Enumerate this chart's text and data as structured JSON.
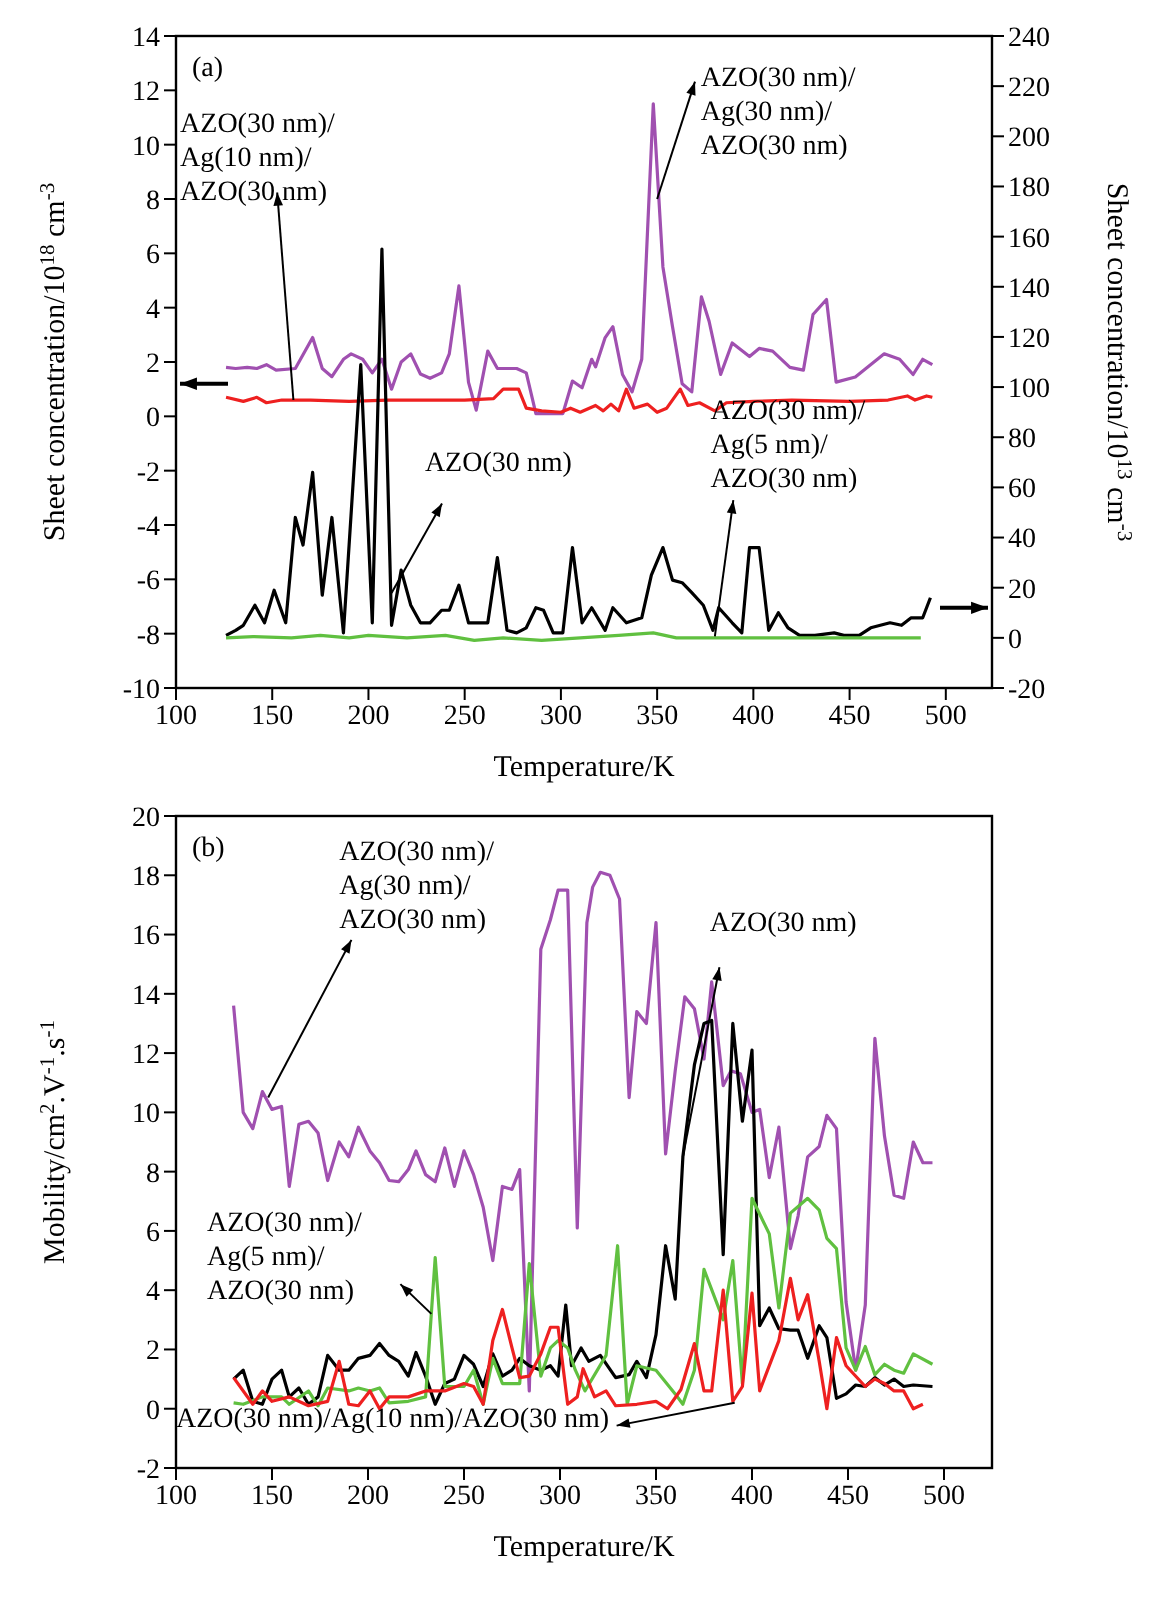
{
  "chart_data": [
    {
      "type": "line",
      "title": "(a)",
      "xlabel": "Temperature/K",
      "ylabel": "Sheet concentration/10$^{18}$ cm$^{-3}$",
      "y2label": "Sheet concentration/10$^{13}$ cm$^{-3}$",
      "marker": "none",
      "xlim": [
        100,
        524
      ],
      "xticks": [
        100,
        150,
        200,
        250,
        300,
        350,
        400,
        450,
        500
      ],
      "ylim": [
        -10,
        14
      ],
      "yticks": [
        -10,
        -8,
        -6,
        -4,
        -2,
        0,
        2,
        4,
        6,
        8,
        10,
        12,
        14
      ],
      "y2lim": [
        -20,
        240
      ],
      "y2ticks": [
        -20,
        0,
        20,
        40,
        60,
        80,
        100,
        120,
        140,
        160,
        180,
        200,
        220,
        240
      ],
      "series": [
        {
          "color": "#a050b0",
          "x": [
            126,
            131,
            137,
            142,
            147,
            152,
            162,
            171,
            176,
            181,
            187,
            191,
            197,
            202,
            207,
            212,
            217,
            222,
            227,
            232,
            238,
            242,
            247,
            252,
            256,
            262,
            267,
            277,
            282,
            287,
            291,
            301,
            306,
            311,
            316,
            318,
            323,
            327,
            332,
            337,
            342,
            348,
            353,
            358,
            363,
            368,
            373,
            377,
            383,
            389,
            398,
            403,
            410,
            419,
            426,
            431,
            438,
            443,
            453,
            468,
            476,
            483,
            488,
            493
          ],
          "values": [
            1.8,
            1.76,
            1.8,
            1.76,
            1.9,
            1.7,
            1.76,
            2.9,
            1.76,
            1.46,
            2.1,
            2.3,
            2.1,
            1.6,
            2.1,
            1.0,
            2.0,
            2.3,
            1.56,
            1.4,
            1.6,
            2.3,
            4.8,
            1.25,
            0.23,
            2.4,
            1.76,
            1.76,
            1.6,
            0.1,
            0.1,
            0.1,
            1.3,
            1.05,
            2.1,
            1.82,
            2.9,
            3.3,
            1.54,
            0.9,
            2.1,
            11.5,
            5.5,
            3.3,
            1.2,
            0.9,
            4.4,
            3.5,
            1.54,
            2.7,
            2.2,
            2.5,
            2.4,
            1.8,
            1.7,
            3.75,
            4.3,
            1.26,
            1.45,
            2.3,
            2.1,
            1.54,
            2.1,
            1.9
          ]
        },
        {
          "color": "#ee2020",
          "x": [
            126,
            135,
            142,
            147,
            155,
            170,
            190,
            210,
            230,
            250,
            265,
            270,
            278,
            282,
            290,
            300,
            305,
            310,
            318,
            322,
            326,
            330,
            334,
            338,
            345,
            350,
            355,
            362,
            366,
            372,
            380,
            386,
            400,
            420,
            450,
            470,
            480,
            484,
            490,
            493
          ],
          "values": [
            0.7,
            0.55,
            0.7,
            0.5,
            0.6,
            0.6,
            0.55,
            0.6,
            0.6,
            0.6,
            0.65,
            1.0,
            1.0,
            0.3,
            0.2,
            0.15,
            0.3,
            0.15,
            0.4,
            0.2,
            0.45,
            0.2,
            1.0,
            0.3,
            0.45,
            0.15,
            0.3,
            1.0,
            0.4,
            0.5,
            0.2,
            0.5,
            0.55,
            0.6,
            0.55,
            0.6,
            0.75,
            0.6,
            0.75,
            0.7
          ]
        },
        {
          "color": "#000000",
          "axis": "y2",
          "x": [
            126,
            131,
            135,
            141,
            146,
            151,
            157,
            162,
            166,
            171,
            176,
            181,
            187,
            196,
            202,
            207,
            212,
            217,
            222,
            227,
            232,
            238,
            242,
            247,
            252,
            257,
            262,
            267,
            272,
            277,
            282,
            287,
            291,
            296,
            301,
            306,
            311,
            316,
            323,
            327,
            334,
            342,
            347,
            353,
            358,
            363,
            368,
            374,
            379,
            382,
            389,
            394,
            398,
            403,
            408,
            413,
            418,
            424,
            432,
            442,
            447,
            455,
            461,
            471,
            477,
            482,
            488,
            492
          ],
          "values": [
            1,
            3,
            5,
            13,
            6,
            19,
            6,
            48,
            37,
            66,
            17,
            48,
            2,
            109,
            6,
            155,
            5,
            27,
            13,
            6,
            6,
            11,
            11,
            21,
            6,
            6,
            6,
            32,
            3,
            2,
            4,
            12,
            11,
            2,
            2,
            36,
            6,
            12,
            3,
            12,
            6,
            8,
            25,
            36,
            23,
            22,
            18,
            13,
            3,
            12,
            6,
            2,
            36,
            36,
            3,
            10,
            4,
            1,
            1,
            2,
            1,
            1,
            4,
            6,
            5,
            8,
            8,
            16
          ]
        },
        {
          "color": "#60c040",
          "axis": "y2",
          "x": [
            126,
            140,
            160,
            175,
            190,
            200,
            220,
            240,
            255,
            270,
            290,
            310,
            330,
            348,
            360,
            400,
            440,
            487
          ],
          "values": [
            0,
            0.5,
            0,
            1,
            0,
            1,
            0,
            1,
            -1,
            0,
            -1,
            0,
            1,
            2,
            0,
            0,
            0,
            0
          ]
        }
      ],
      "annotations": [
        {
          "text": "AZO(30 nm)/\nAg(10 nm)/\nAZO(30 nm)",
          "x": 161,
          "y": 0.6
        },
        {
          "text": "AZO(30 nm)/\nAg(30 nm)/\nAZO(30 nm)",
          "x": 350,
          "y": 8
        },
        {
          "text": "AZO(30 nm)",
          "x": 212,
          "y": -6.5
        },
        {
          "text": "AZO(30 nm)/\nAg(5 nm)/\nAZO(30 nm)",
          "x": 380,
          "y": -8.1
        }
      ]
    },
    {
      "type": "line",
      "title": "(b)",
      "xlabel": "Temperature/K",
      "ylabel": "Mobility/cm$^{2}$.V$^{-1}$.s$^{-1}$",
      "marker": "none",
      "xlim": [
        100,
        525
      ],
      "xticks": [
        100,
        150,
        200,
        250,
        300,
        350,
        400,
        450,
        500
      ],
      "ylim": [
        -2,
        20
      ],
      "yticks": [
        -2,
        0,
        2,
        4,
        6,
        8,
        10,
        12,
        14,
        16,
        18,
        20
      ],
      "series": [
        {
          "color": "#a050b0",
          "x": [
            130,
            135,
            140,
            145,
            150,
            155,
            159,
            164,
            169,
            174,
            179,
            185,
            190,
            195,
            201,
            206,
            211,
            216,
            221,
            225,
            230,
            235,
            240,
            245,
            250,
            255,
            260,
            265,
            270,
            275,
            279,
            284,
            290,
            295,
            299,
            304,
            309,
            314,
            317,
            321,
            326,
            331,
            336,
            340,
            345,
            350,
            355,
            360,
            365,
            370,
            375,
            379,
            385,
            389,
            394,
            400,
            404,
            409,
            414,
            420,
            424,
            429,
            435,
            439,
            444,
            449,
            454,
            459,
            464,
            469,
            474,
            479,
            484,
            489,
            494
          ],
          "values": [
            13.6,
            10.0,
            9.45,
            10.7,
            10.1,
            10.2,
            7.5,
            9.6,
            9.7,
            9.3,
            7.7,
            9.0,
            8.5,
            9.5,
            8.7,
            8.3,
            7.7,
            7.66,
            8.07,
            8.7,
            7.9,
            7.66,
            8.8,
            7.5,
            8.7,
            7.9,
            6.8,
            5.0,
            7.5,
            7.4,
            8.07,
            0.6,
            15.5,
            16.5,
            17.5,
            17.5,
            6.1,
            16.4,
            17.6,
            18.1,
            18.0,
            17.2,
            10.5,
            13.4,
            13.0,
            16.4,
            8.6,
            11.4,
            13.9,
            13.5,
            11.8,
            14.4,
            10.9,
            11.4,
            11.3,
            10.0,
            10.1,
            7.8,
            9.5,
            5.4,
            6.5,
            8.5,
            8.85,
            9.9,
            9.45,
            3.6,
            1.3,
            3.5,
            12.5,
            9.2,
            7.2,
            7.1,
            9.0,
            8.3,
            8.3
          ]
        },
        {
          "color": "#000000",
          "x": [
            130,
            135,
            140,
            145,
            150,
            155,
            159,
            164,
            169,
            174,
            179,
            185,
            190,
            195,
            201,
            206,
            211,
            216,
            221,
            225,
            230,
            235,
            240,
            245,
            250,
            255,
            260,
            265,
            270,
            275,
            279,
            284,
            290,
            295,
            299,
            303,
            306,
            311,
            315,
            321,
            329,
            336,
            340,
            345,
            350,
            355,
            360,
            364,
            370,
            375,
            379,
            385,
            390,
            395,
            400,
            404,
            409,
            414,
            420,
            424,
            429,
            435,
            439,
            444,
            449,
            454,
            459,
            464,
            469,
            474,
            479,
            484,
            494
          ],
          "values": [
            1.0,
            1.3,
            0.25,
            0.15,
            1.0,
            1.3,
            0.4,
            0.7,
            0.15,
            0.4,
            1.8,
            1.3,
            1.3,
            1.7,
            1.8,
            2.2,
            1.8,
            1.6,
            1.1,
            1.9,
            1.1,
            0.15,
            0.85,
            1.0,
            1.8,
            1.5,
            0.75,
            1.85,
            1.1,
            1.3,
            1.7,
            1.45,
            1.3,
            1.45,
            1.1,
            3.5,
            1.45,
            2.05,
            1.6,
            1.8,
            1.05,
            1.15,
            1.6,
            1.05,
            2.5,
            5.5,
            3.7,
            8.5,
            11.6,
            13.0,
            13.1,
            5.2,
            13.0,
            9.7,
            12.1,
            2.8,
            3.4,
            2.7,
            2.65,
            2.65,
            1.7,
            2.8,
            2.4,
            0.35,
            0.5,
            0.8,
            0.75,
            1.05,
            0.8,
            1.0,
            0.75,
            0.8,
            0.75
          ]
        },
        {
          "color": "#60c040",
          "x": [
            130,
            135,
            145,
            155,
            159,
            169,
            174,
            179,
            190,
            195,
            201,
            206,
            211,
            221,
            230,
            235,
            240,
            250,
            255,
            260,
            265,
            270,
            279,
            284,
            290,
            295,
            299,
            304,
            308,
            313,
            324,
            330,
            335,
            340,
            350,
            360,
            364,
            370,
            375,
            385,
            390,
            395,
            400,
            409,
            414,
            420,
            429,
            435,
            439,
            444,
            449,
            454,
            459,
            464,
            469,
            474,
            479,
            484,
            494
          ],
          "values": [
            0.2,
            0.15,
            0.4,
            0.4,
            0.15,
            0.6,
            0.1,
            0.7,
            0.6,
            0.7,
            0.6,
            0.7,
            0.2,
            0.25,
            0.4,
            5.1,
            0.75,
            0.75,
            1.3,
            0.15,
            1.7,
            0.85,
            0.85,
            4.9,
            1.1,
            2.05,
            2.3,
            2.05,
            1.3,
            0.6,
            1.8,
            5.5,
            0.15,
            1.45,
            1.3,
            0.5,
            0.15,
            1.3,
            4.7,
            3.0,
            5.0,
            0.85,
            7.1,
            5.9,
            3.4,
            6.6,
            7.1,
            6.7,
            5.75,
            5.4,
            2.05,
            1.3,
            2.1,
            1.15,
            1.5,
            1.3,
            1.2,
            1.85,
            1.5
          ]
        },
        {
          "color": "#ee2020",
          "x": [
            130,
            140,
            145,
            150,
            159,
            169,
            179,
            185,
            190,
            195,
            201,
            206,
            211,
            221,
            230,
            240,
            250,
            255,
            260,
            265,
            270,
            275,
            279,
            284,
            290,
            295,
            299,
            304,
            309,
            312,
            318,
            324,
            329,
            340,
            350,
            356,
            363,
            370,
            375,
            379,
            385,
            390,
            395,
            400,
            404,
            414,
            420,
            424,
            429,
            435,
            439,
            444,
            449,
            459,
            464,
            469,
            474,
            479,
            484,
            489
          ],
          "values": [
            1.05,
            0.15,
            0.6,
            0.25,
            0.4,
            0.1,
            0.25,
            1.6,
            0.15,
            0.1,
            0.6,
            0.0,
            0.4,
            0.4,
            0.6,
            0.6,
            0.85,
            0.75,
            0.15,
            2.3,
            3.35,
            2.05,
            1.05,
            1.1,
            1.85,
            2.75,
            2.75,
            0.15,
            0.4,
            1.35,
            0.4,
            0.6,
            0.1,
            0.15,
            0.25,
            0.0,
            0.65,
            2.2,
            0.6,
            0.6,
            4.0,
            0.25,
            0.75,
            3.9,
            0.6,
            2.3,
            4.4,
            3.0,
            3.85,
            1.6,
            0.0,
            2.4,
            1.45,
            0.75,
            1.0,
            0.85,
            0.6,
            0.6,
            0.0,
            0.15
          ]
        }
      ],
      "annotations": [
        {
          "text": "AZO(30 nm)/\nAg(30 nm)/\nAZO(30 nm)",
          "x": 148,
          "y": 10.5
        },
        {
          "text": "AZO(30 nm)/\nAg(5 nm)/\nAZO(30 nm)",
          "x": 233,
          "y": 3.2
        },
        {
          "text": "AZO(30 nm)",
          "x": 364,
          "y": 8.5
        },
        {
          "text": "AZO(30 nm)/Ag(10 nm)/AZO(30 nm)",
          "x": 391,
          "y": 0.2
        }
      ]
    }
  ]
}
